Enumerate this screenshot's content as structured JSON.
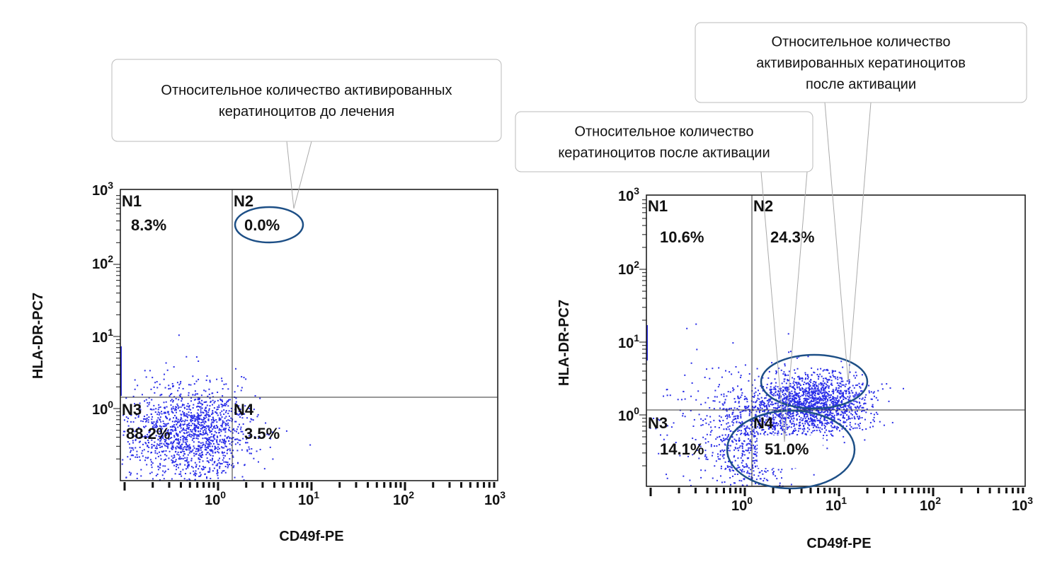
{
  "panels": [
    {
      "y_axis_label": "HLA-DR-PC7",
      "x_axis_label": "CD49f-PE",
      "ticks": [
        {
          "base": "10",
          "exp": "0"
        },
        {
          "base": "10",
          "exp": "1"
        },
        {
          "base": "10",
          "exp": "2"
        },
        {
          "base": "10",
          "exp": "3"
        }
      ],
      "quadrants": [
        {
          "name": "N1",
          "percent": "8.3%"
        },
        {
          "name": "N2",
          "percent": "0.0%"
        },
        {
          "name": "N3",
          "percent": "88.2%"
        },
        {
          "name": "N4",
          "percent": "3.5%"
        }
      ]
    },
    {
      "y_axis_label": "HLA-DR-PC7",
      "x_axis_label": "CD49f-PE",
      "ticks": [
        {
          "base": "10",
          "exp": "0"
        },
        {
          "base": "10",
          "exp": "1"
        },
        {
          "base": "10",
          "exp": "2"
        },
        {
          "base": "10",
          "exp": "3"
        }
      ],
      "quadrants": [
        {
          "name": "N1",
          "percent": "10.6%"
        },
        {
          "name": "N2",
          "percent": "24.3%"
        },
        {
          "name": "N3",
          "percent": "14.1%"
        },
        {
          "name": "N4",
          "percent": "51.0%"
        }
      ]
    }
  ],
  "callouts": [
    {
      "lines": [
        "Относительное количество активированных",
        "кератиноцитов до лечения"
      ]
    },
    {
      "lines": [
        "Относительное количество",
        "кератиноцитов после активации"
      ]
    },
    {
      "lines": [
        "Относительное количество",
        "активированных кератиноцитов",
        "после активации"
      ]
    }
  ]
}
